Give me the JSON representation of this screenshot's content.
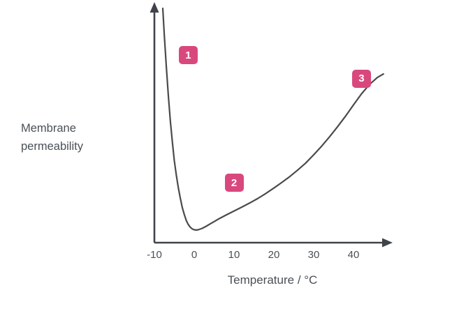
{
  "chart_data": {
    "type": "line",
    "title": "",
    "xlabel": "Temperature / °C",
    "ylabel": "Membrane\npermeability",
    "grid": false,
    "legend": "none",
    "x_range": [
      -10,
      50
    ],
    "y_range": [
      0,
      100
    ],
    "x_ticks": [
      "-10",
      "0",
      "10",
      "20",
      "30",
      "40"
    ],
    "x_tick_values": [
      -10,
      0,
      10,
      20,
      30,
      40
    ],
    "y_ticks": [],
    "series": [
      {
        "name": "membrane-permeability-curve",
        "x": [
          -7.9,
          -7.5,
          -7,
          -6.5,
          -6,
          -5.5,
          -5,
          -4.5,
          -4,
          -3.5,
          -3,
          -2.5,
          -2,
          -1.5,
          -1,
          -0.5,
          0,
          0.5,
          1,
          2,
          3,
          4,
          5,
          6,
          8,
          10,
          12,
          14,
          16,
          18,
          20,
          22,
          24,
          26,
          28,
          30,
          32,
          34,
          36,
          38,
          40,
          42,
          44,
          46,
          47.5
        ],
        "y": [
          100,
          88,
          75,
          63,
          52,
          43,
          35,
          29,
          23.5,
          19,
          15,
          12,
          9.5,
          7.8,
          6.6,
          5.9,
          5.5,
          5.4,
          5.5,
          6.1,
          7,
          8,
          9,
          10,
          11.8,
          13.5,
          15.2,
          17,
          18.9,
          21,
          23.3,
          25.7,
          28.2,
          31,
          34,
          37.5,
          41.2,
          45.2,
          49.5,
          54,
          58.8,
          63.5,
          67.5,
          70.5,
          72
        ]
      }
    ],
    "annotations": [
      {
        "label": "1",
        "x": -1.5,
        "y": 80
      },
      {
        "label": "2",
        "x": 10,
        "y": 25.5
      },
      {
        "label": "3",
        "x": 42,
        "y": 70
      }
    ]
  },
  "colors": {
    "curve": "#4a4a4a",
    "axis": "#3f434a",
    "badge_bg": "#d9487c",
    "badge_text": "#ffffff",
    "text": "#4a5056",
    "background": "#ffffff"
  }
}
